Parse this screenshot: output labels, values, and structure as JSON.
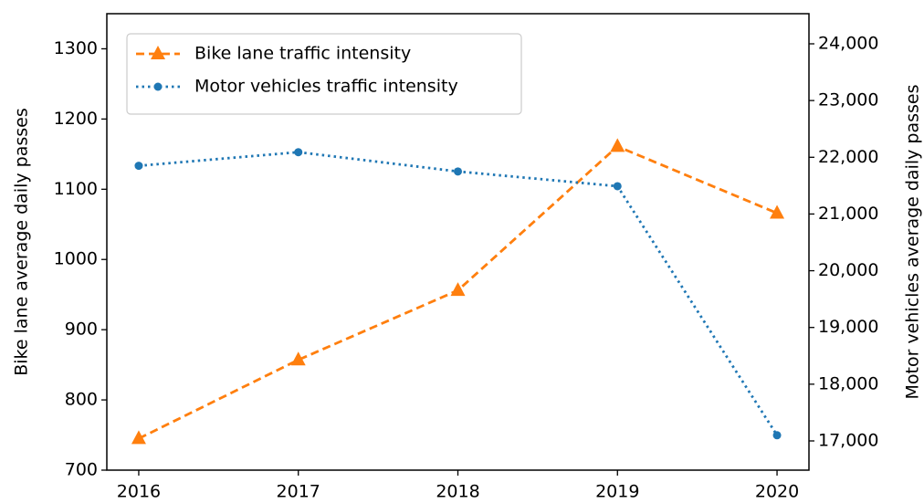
{
  "chart_data": {
    "type": "line",
    "x": [
      2016,
      2017,
      2018,
      2019,
      2020
    ],
    "xlim": [
      2015.8,
      2020.2
    ],
    "xticks": [
      2016,
      2017,
      2018,
      2019,
      2020
    ],
    "ylabel": "Bike lane average daily passes",
    "y2label": "Motor vehicles average daily passes",
    "ylim": [
      700,
      1350
    ],
    "yticks": [
      700,
      800,
      900,
      1000,
      1100,
      1200,
      1300
    ],
    "y2lim": [
      16485,
      24531
    ],
    "y2ticks": [
      {
        "value": 17000,
        "label": "17,000"
      },
      {
        "value": 18000,
        "label": "18,000"
      },
      {
        "value": 19000,
        "label": "19,000"
      },
      {
        "value": 20000,
        "label": "20,000"
      },
      {
        "value": 21000,
        "label": "21,000"
      },
      {
        "value": 22000,
        "label": "22,000"
      },
      {
        "value": 23000,
        "label": "23,000"
      },
      {
        "value": 24000,
        "label": "24,000"
      }
    ],
    "legend": "upper left",
    "series": [
      {
        "name": "Bike lane traffic intensity",
        "color": "#ff7f0e",
        "marker": "triangle",
        "linestyle": "dashed",
        "values": [
          745,
          857,
          956,
          1161,
          1066
        ]
      },
      {
        "name": "Motor vehicles traffic intensity",
        "color": "#1f77b4",
        "marker": "circle",
        "linestyle": "dotted",
        "axis": "y2",
        "values": [
          21850,
          22090,
          21750,
          21490,
          17100
        ]
      }
    ]
  }
}
